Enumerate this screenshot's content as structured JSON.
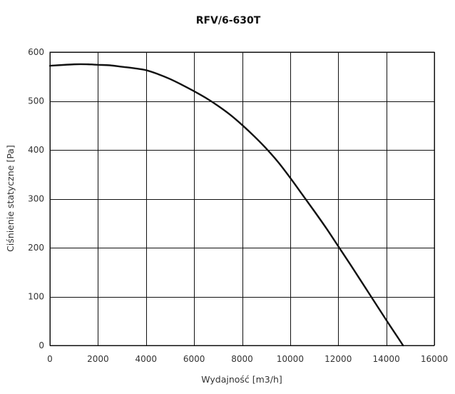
{
  "chart_data": {
    "type": "line",
    "title": "RFV/6-630T",
    "xlabel": "Wydajność [m3/h]",
    "ylabel": "Ciśnienie statyczne [Pa]",
    "xlim": [
      0,
      16000
    ],
    "ylim": [
      0,
      600
    ],
    "x_ticks": [
      0,
      2000,
      4000,
      6000,
      8000,
      10000,
      12000,
      14000,
      16000
    ],
    "y_ticks": [
      0,
      100,
      200,
      300,
      400,
      500,
      600
    ],
    "grid": true,
    "series": [
      {
        "color": "#111111",
        "x": [
          0,
          1000,
          1600,
          2000,
          2500,
          3000,
          3500,
          4000,
          4500,
          5000,
          5500,
          6000,
          6500,
          7000,
          7500,
          8000,
          8500,
          9000,
          9500,
          10000,
          10500,
          11000,
          11500,
          12000,
          12500,
          13000,
          13500,
          14000,
          14500,
          14700
        ],
        "y": [
          572,
          575,
          575,
          574,
          573,
          570,
          567,
          563,
          555,
          545,
          533,
          520,
          506,
          490,
          472,
          451,
          428,
          403,
          375,
          343,
          309,
          275,
          240,
          203,
          166,
          128,
          90,
          52,
          15,
          0
        ]
      }
    ]
  }
}
